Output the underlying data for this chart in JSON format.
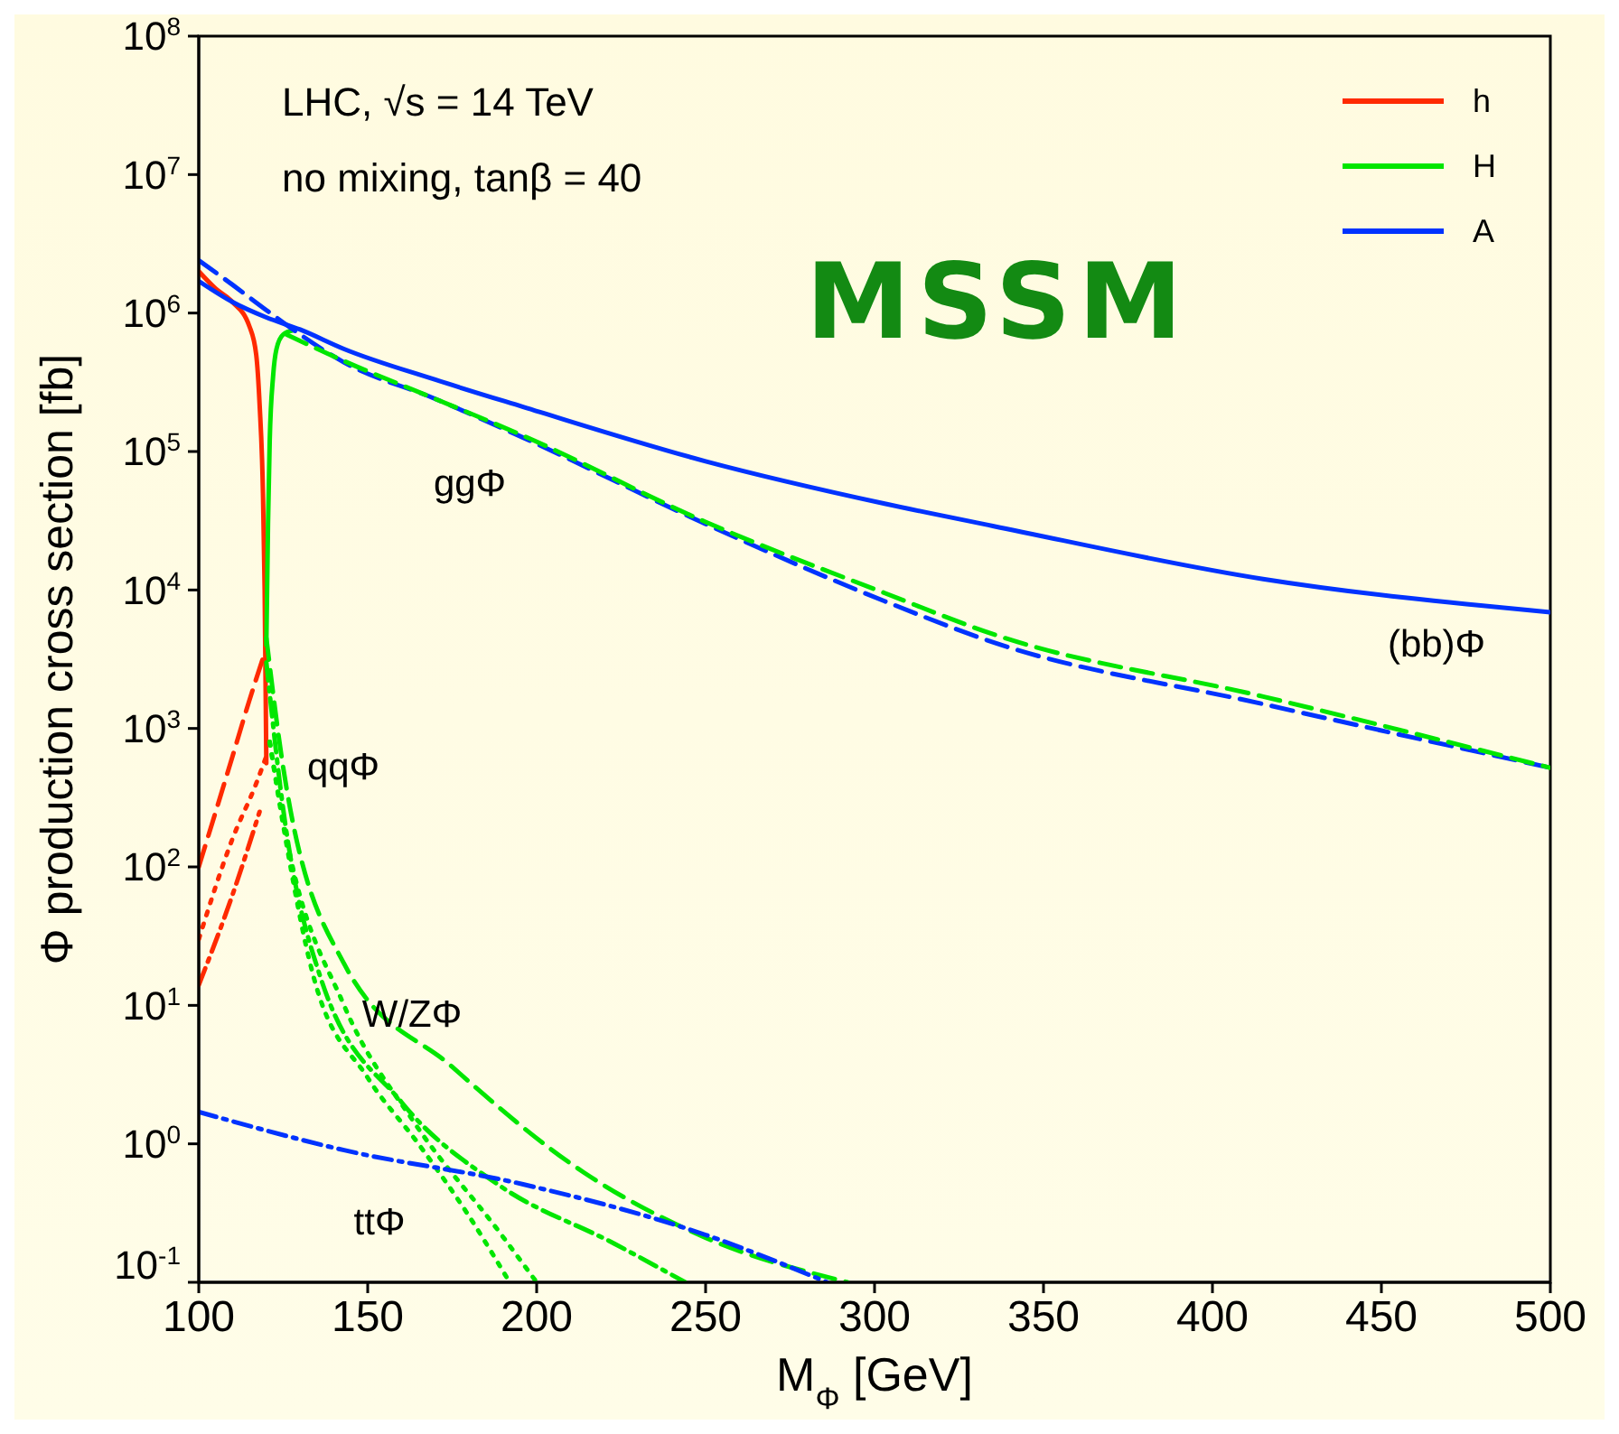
{
  "chart_data": {
    "type": "line",
    "xlabel": "M$_{Φ}$ [GeV]",
    "ylabel": "Φ production cross section [fb]",
    "xlim": [
      100,
      500
    ],
    "xticks": [
      100,
      150,
      200,
      250,
      300,
      350,
      400,
      450,
      500
    ],
    "ylim": [
      0.1,
      100000000
    ],
    "yticks": [
      {
        "value": 0.1,
        "label": "10$^{-1}$"
      },
      {
        "value": 1,
        "label": "10$^{0}$"
      },
      {
        "value": 10,
        "label": "10$^{1}$"
      },
      {
        "value": 100,
        "label": "10$^{2}$"
      },
      {
        "value": 1000,
        "label": "10$^{3}$"
      },
      {
        "value": 10000,
        "label": "10$^{4}$"
      },
      {
        "value": 100000,
        "label": "10$^{5}$"
      },
      {
        "value": 1000000,
        "label": "10$^{6}$"
      },
      {
        "value": 10000000,
        "label": "10$^{7}$"
      },
      {
        "value": 100000000,
        "label": "10$^{8}$"
      }
    ],
    "log": "y",
    "grid": false,
    "legend": "top right",
    "marker": "none",
    "series": [
      {
        "name": "h",
        "color": "#ff2a00",
        "line_style": "solid",
        "x": [
          100,
          105,
          110,
          115,
          117,
          118,
          119,
          119.5,
          120
        ],
        "values": [
          2000000,
          1500000,
          1200000,
          800000,
          500000,
          220000,
          50000,
          10000,
          560
        ]
      },
      {
        "name": "H",
        "color": "#00e600",
        "line_style": "solid",
        "x": [
          120,
          120.5,
          121,
          122,
          123,
          125,
          128
        ],
        "values": [
          4000,
          30000,
          120000,
          350000,
          550000,
          700000,
          750000
        ]
      },
      {
        "name": "A",
        "color": "#0033ff",
        "line_style": "solid",
        "x": [
          100,
          110,
          120,
          130,
          143,
          170,
          196,
          250,
          303,
          335,
          415,
          500
        ],
        "values": [
          1700000,
          1200000,
          930000,
          760000,
          550000,
          330000,
          210000,
          85000,
          42000,
          29000,
          12000,
          6900
        ]
      },
      {
        "color": "#0033ff",
        "line_style": "dashed",
        "x": [
          100,
          110,
          120,
          130,
          143,
          170,
          196,
          250,
          303,
          335,
          415,
          500
        ],
        "values": [
          2400000,
          1600000,
          1050000,
          700000,
          440000,
          240000,
          126000,
          30000,
          8300,
          4200,
          1500,
          520
        ]
      },
      {
        "color": "#00e600",
        "line_style": "dashed",
        "x": [
          126,
          143,
          170,
          196,
          250,
          303,
          335,
          415,
          500
        ],
        "values": [
          700000,
          450000,
          240000,
          130000,
          31000,
          9500,
          4800,
          1700,
          520
        ]
      },
      {
        "color": "#ff2a00",
        "line_style": "dashed",
        "x": [
          100,
          105,
          110,
          115,
          119.5
        ],
        "values": [
          100,
          250,
          630,
          1600,
          3500
        ]
      },
      {
        "color": "#ff2a00",
        "line_style": "dotted",
        "x": [
          100,
          110,
          117,
          120
        ],
        "values": [
          30,
          160,
          400,
          630
        ]
      },
      {
        "color": "#ff2a00",
        "line_style": "dashdot",
        "x": [
          100,
          110,
          118
        ],
        "values": [
          14,
          63,
          250
        ]
      },
      {
        "color": "#00e600",
        "line_style": "dashed",
        "x": [
          120,
          125,
          143,
          175,
          214,
          250,
          292
        ],
        "values": [
          4500,
          520,
          20,
          3.6,
          0.62,
          0.21,
          0.1
        ]
      },
      {
        "color": "#00e600",
        "line_style": "dashdot",
        "x": [
          120,
          125,
          136,
          160,
          189,
          223,
          244
        ],
        "values": [
          3000,
          260,
          16,
          2,
          0.5,
          0.19,
          0.1
        ]
      },
      {
        "color": "#00e600",
        "line_style": "dotted",
        "x": [
          121,
          126,
          143,
          164,
          189,
          200
        ],
        "values": [
          800,
          160,
          10,
          1.4,
          0.23,
          0.1
        ]
      },
      {
        "color": "#00e600",
        "line_style": "dotted",
        "x": [
          121,
          125,
          134,
          150,
          165,
          180,
          192
        ],
        "values": [
          800,
          200,
          16,
          3,
          1,
          0.3,
          0.1
        ]
      },
      {
        "color": "#0033ff",
        "line_style": "dashdot",
        "x": [
          100,
          143,
          196,
          250,
          286
        ],
        "values": [
          1.7,
          0.9,
          0.51,
          0.22,
          0.1
        ]
      }
    ],
    "annotations": [
      "LHC, √s = 14 TeV",
      "no mixing, tanβ = 40",
      "MSSM",
      "ggΦ",
      "qqΦ",
      "W/ZΦ",
      "ttΦ",
      "(bb)Φ"
    ]
  }
}
